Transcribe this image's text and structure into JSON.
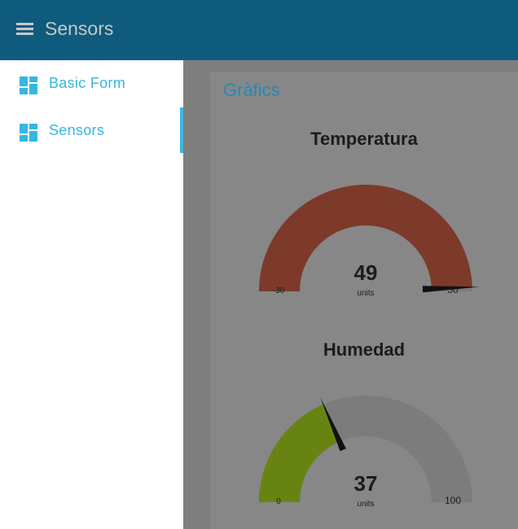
{
  "header": {
    "title": "Sensors",
    "menu_icon": "hamburger-menu-icon"
  },
  "sidebar": {
    "items": [
      {
        "label": "Basic Form",
        "icon": "dashboard-icon",
        "active": false
      },
      {
        "label": "Sensors",
        "icon": "dashboard-icon",
        "active": true
      }
    ]
  },
  "main": {
    "section_title": "Gràfics",
    "gauges": [
      {
        "title": "Temperatura",
        "value": "49",
        "units": "units",
        "min": "-30",
        "max": "50",
        "fill_color": "#7d3a2a",
        "track_color": "#7c7c7c"
      },
      {
        "title": "Humedad",
        "value": "37",
        "units": "units",
        "min": "0",
        "max": "100",
        "fill_color": "#678413",
        "track_color": "#7c7c7c"
      }
    ]
  },
  "colors": {
    "header_bg": "#0f5b7d",
    "accent": "#35b6e3",
    "section_title": "#2688b8",
    "background": "#7e7e7e"
  }
}
